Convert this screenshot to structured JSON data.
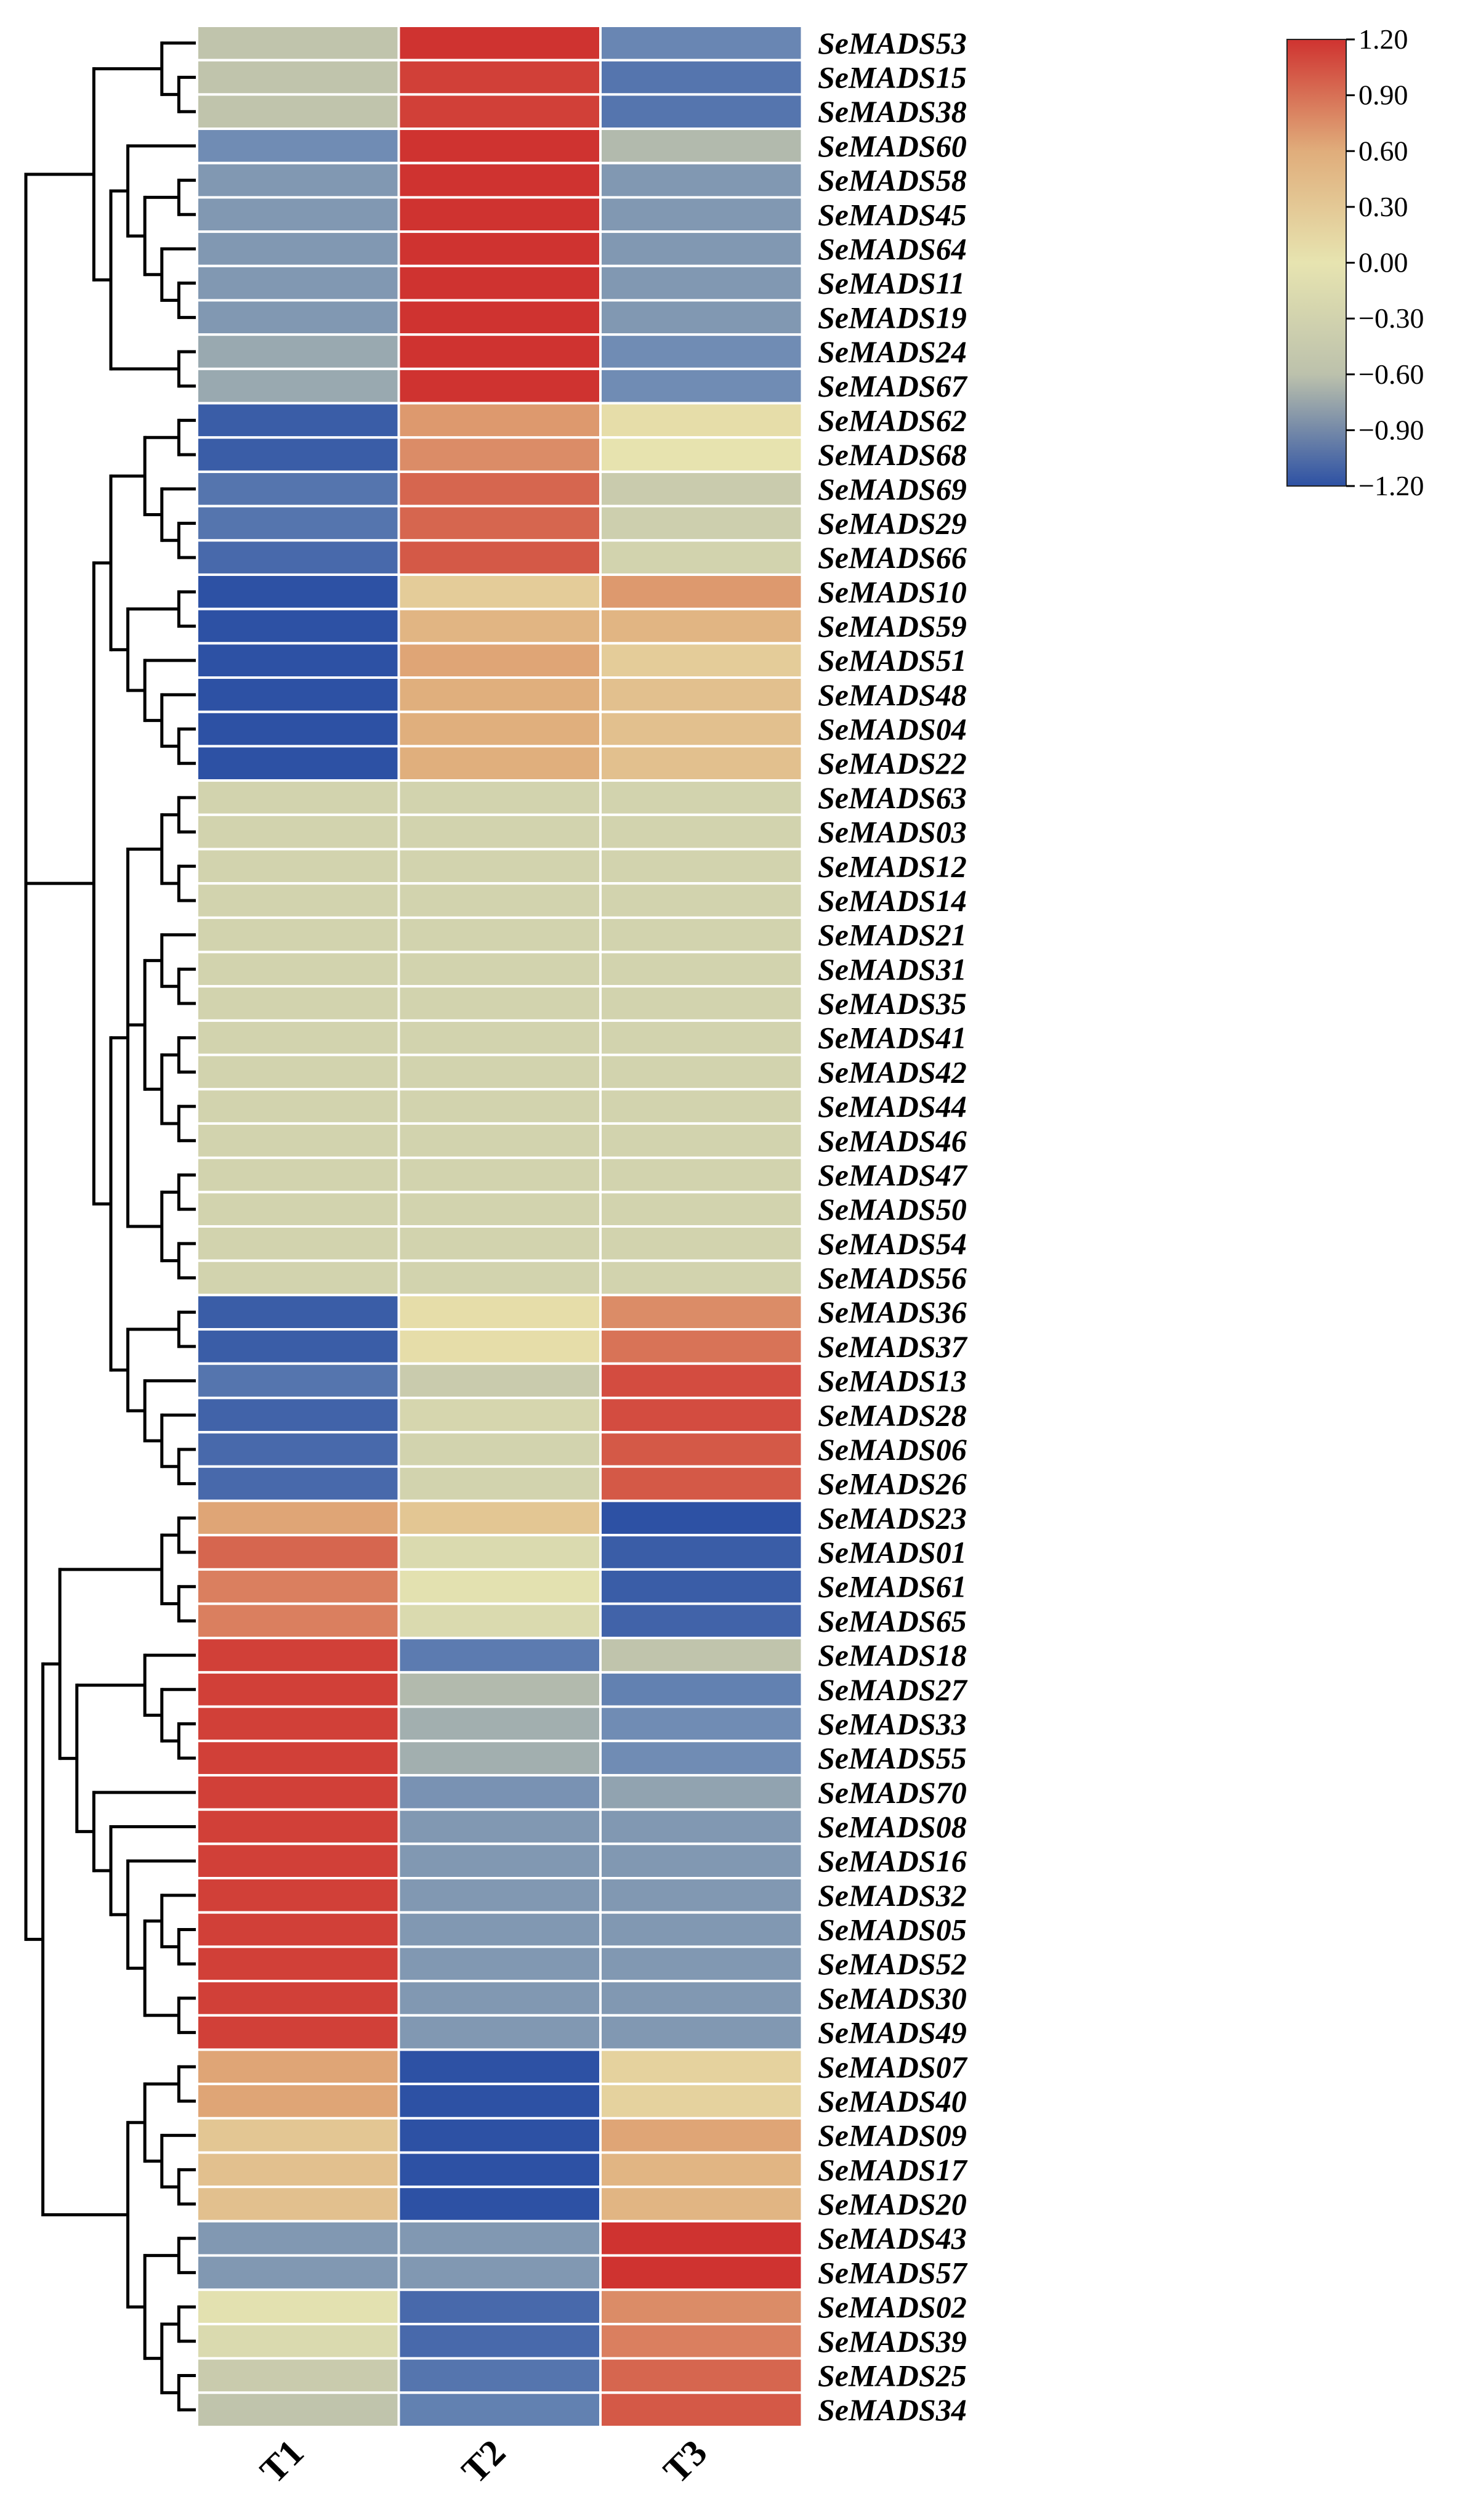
{
  "chart_data": {
    "type": "heatmap",
    "title": "",
    "columns": [
      "T1",
      "T2",
      "T3"
    ],
    "rows": [
      {
        "gene": "SeMADS53",
        "values": [
          -0.2,
          1.2,
          -0.75
        ]
      },
      {
        "gene": "SeMADS15",
        "values": [
          -0.2,
          1.15,
          -0.9
        ]
      },
      {
        "gene": "SeMADS38",
        "values": [
          -0.2,
          1.15,
          -0.9
        ]
      },
      {
        "gene": "SeMADS60",
        "values": [
          -0.7,
          1.2,
          -0.3
        ]
      },
      {
        "gene": "SeMADS58",
        "values": [
          -0.6,
          1.2,
          -0.6
        ]
      },
      {
        "gene": "SeMADS45",
        "values": [
          -0.6,
          1.2,
          -0.6
        ]
      },
      {
        "gene": "SeMADS64",
        "values": [
          -0.6,
          1.2,
          -0.6
        ]
      },
      {
        "gene": "SeMADS11",
        "values": [
          -0.6,
          1.2,
          -0.6
        ]
      },
      {
        "gene": "SeMADS19",
        "values": [
          -0.6,
          1.2,
          -0.6
        ]
      },
      {
        "gene": "SeMADS24",
        "values": [
          -0.45,
          1.2,
          -0.7
        ]
      },
      {
        "gene": "SeMADS67",
        "values": [
          -0.45,
          1.2,
          -0.7
        ]
      },
      {
        "gene": "SeMADS62",
        "values": [
          -1.1,
          0.8,
          0.3
        ]
      },
      {
        "gene": "SeMADS68",
        "values": [
          -1.1,
          0.85,
          0.25
        ]
      },
      {
        "gene": "SeMADS69",
        "values": [
          -0.9,
          1.0,
          -0.1
        ]
      },
      {
        "gene": "SeMADS29",
        "values": [
          -0.9,
          1.0,
          -0.05
        ]
      },
      {
        "gene": "SeMADS66",
        "values": [
          -1.0,
          1.05,
          0.0
        ]
      },
      {
        "gene": "SeMADS10",
        "values": [
          -1.2,
          0.45,
          0.8
        ]
      },
      {
        "gene": "SeMADS59",
        "values": [
          -1.2,
          0.65,
          0.65
        ]
      },
      {
        "gene": "SeMADS51",
        "values": [
          -1.2,
          0.75,
          0.45
        ]
      },
      {
        "gene": "SeMADS48",
        "values": [
          -1.2,
          0.7,
          0.55
        ]
      },
      {
        "gene": "SeMADS04",
        "values": [
          -1.2,
          0.7,
          0.55
        ]
      },
      {
        "gene": "SeMADS22",
        "values": [
          -1.2,
          0.7,
          0.55
        ]
      },
      {
        "gene": "SeMADS63",
        "values": [
          0.0,
          0.0,
          0.0
        ]
      },
      {
        "gene": "SeMADS03",
        "values": [
          0.0,
          0.0,
          0.0
        ]
      },
      {
        "gene": "SeMADS12",
        "values": [
          0.0,
          0.0,
          0.0
        ]
      },
      {
        "gene": "SeMADS14",
        "values": [
          0.0,
          0.0,
          0.0
        ]
      },
      {
        "gene": "SeMADS21",
        "values": [
          0.0,
          0.0,
          0.0
        ]
      },
      {
        "gene": "SeMADS31",
        "values": [
          0.0,
          0.0,
          0.0
        ]
      },
      {
        "gene": "SeMADS35",
        "values": [
          0.0,
          0.0,
          0.0
        ]
      },
      {
        "gene": "SeMADS41",
        "values": [
          0.0,
          0.0,
          0.0
        ]
      },
      {
        "gene": "SeMADS42",
        "values": [
          0.0,
          0.0,
          0.0
        ]
      },
      {
        "gene": "SeMADS44",
        "values": [
          0.0,
          0.0,
          0.0
        ]
      },
      {
        "gene": "SeMADS46",
        "values": [
          0.0,
          0.0,
          0.0
        ]
      },
      {
        "gene": "SeMADS47",
        "values": [
          0.0,
          0.0,
          0.0
        ]
      },
      {
        "gene": "SeMADS50",
        "values": [
          0.0,
          0.0,
          0.0
        ]
      },
      {
        "gene": "SeMADS54",
        "values": [
          0.0,
          0.0,
          0.0
        ]
      },
      {
        "gene": "SeMADS56",
        "values": [
          0.0,
          0.0,
          0.0
        ]
      },
      {
        "gene": "SeMADS36",
        "values": [
          -1.1,
          0.3,
          0.85
        ]
      },
      {
        "gene": "SeMADS37",
        "values": [
          -1.1,
          0.3,
          0.95
        ]
      },
      {
        "gene": "SeMADS13",
        "values": [
          -0.9,
          -0.1,
          1.1
        ]
      },
      {
        "gene": "SeMADS28",
        "values": [
          -1.05,
          0.05,
          1.1
        ]
      },
      {
        "gene": "SeMADS06",
        "values": [
          -1.0,
          0.0,
          1.05
        ]
      },
      {
        "gene": "SeMADS26",
        "values": [
          -1.0,
          0.0,
          1.05
        ]
      },
      {
        "gene": "SeMADS23",
        "values": [
          0.75,
          0.5,
          -1.2
        ]
      },
      {
        "gene": "SeMADS01",
        "values": [
          1.0,
          0.1,
          -1.1
        ]
      },
      {
        "gene": "SeMADS61",
        "values": [
          0.9,
          0.2,
          -1.1
        ]
      },
      {
        "gene": "SeMADS65",
        "values": [
          0.9,
          0.1,
          -1.05
        ]
      },
      {
        "gene": "SeMADS18",
        "values": [
          1.15,
          -0.85,
          -0.2
        ]
      },
      {
        "gene": "SeMADS27",
        "values": [
          1.15,
          -0.3,
          -0.8
        ]
      },
      {
        "gene": "SeMADS33",
        "values": [
          1.15,
          -0.4,
          -0.7
        ]
      },
      {
        "gene": "SeMADS55",
        "values": [
          1.15,
          -0.4,
          -0.7
        ]
      },
      {
        "gene": "SeMADS70",
        "values": [
          1.15,
          -0.65,
          -0.5
        ]
      },
      {
        "gene": "SeMADS08",
        "values": [
          1.15,
          -0.6,
          -0.6
        ]
      },
      {
        "gene": "SeMADS16",
        "values": [
          1.15,
          -0.6,
          -0.6
        ]
      },
      {
        "gene": "SeMADS32",
        "values": [
          1.15,
          -0.6,
          -0.6
        ]
      },
      {
        "gene": "SeMADS05",
        "values": [
          1.15,
          -0.6,
          -0.6
        ]
      },
      {
        "gene": "SeMADS52",
        "values": [
          1.15,
          -0.6,
          -0.6
        ]
      },
      {
        "gene": "SeMADS30",
        "values": [
          1.15,
          -0.6,
          -0.6
        ]
      },
      {
        "gene": "SeMADS49",
        "values": [
          1.15,
          -0.6,
          -0.6
        ]
      },
      {
        "gene": "SeMADS07",
        "values": [
          0.75,
          -1.2,
          0.4
        ]
      },
      {
        "gene": "SeMADS40",
        "values": [
          0.75,
          -1.2,
          0.4
        ]
      },
      {
        "gene": "SeMADS09",
        "values": [
          0.5,
          -1.2,
          0.75
        ]
      },
      {
        "gene": "SeMADS17",
        "values": [
          0.55,
          -1.2,
          0.65
        ]
      },
      {
        "gene": "SeMADS20",
        "values": [
          0.55,
          -1.2,
          0.65
        ]
      },
      {
        "gene": "SeMADS43",
        "values": [
          -0.6,
          -0.6,
          1.2
        ]
      },
      {
        "gene": "SeMADS57",
        "values": [
          -0.6,
          -0.6,
          1.2
        ]
      },
      {
        "gene": "SeMADS02",
        "values": [
          0.2,
          -1.0,
          0.85
        ]
      },
      {
        "gene": "SeMADS39",
        "values": [
          0.1,
          -1.0,
          0.9
        ]
      },
      {
        "gene": "SeMADS25",
        "values": [
          -0.1,
          -0.9,
          1.0
        ]
      },
      {
        "gene": "SeMADS34",
        "values": [
          -0.2,
          -0.8,
          1.05
        ]
      }
    ],
    "color_scale": {
      "min": -1.2,
      "max": 1.2,
      "ticks": [
        "1.20",
        "0.90",
        "0.60",
        "0.30",
        "0.00",
        "−0.30",
        "−0.60",
        "−0.90",
        "−1.20"
      ],
      "colors": [
        "#2d51a4",
        "#6d8ab4",
        "#bcc1ac",
        "#e7e4b0",
        "#e0ad7b",
        "#cf3330"
      ]
    },
    "dendrogram": "row-clustering, left side"
  }
}
